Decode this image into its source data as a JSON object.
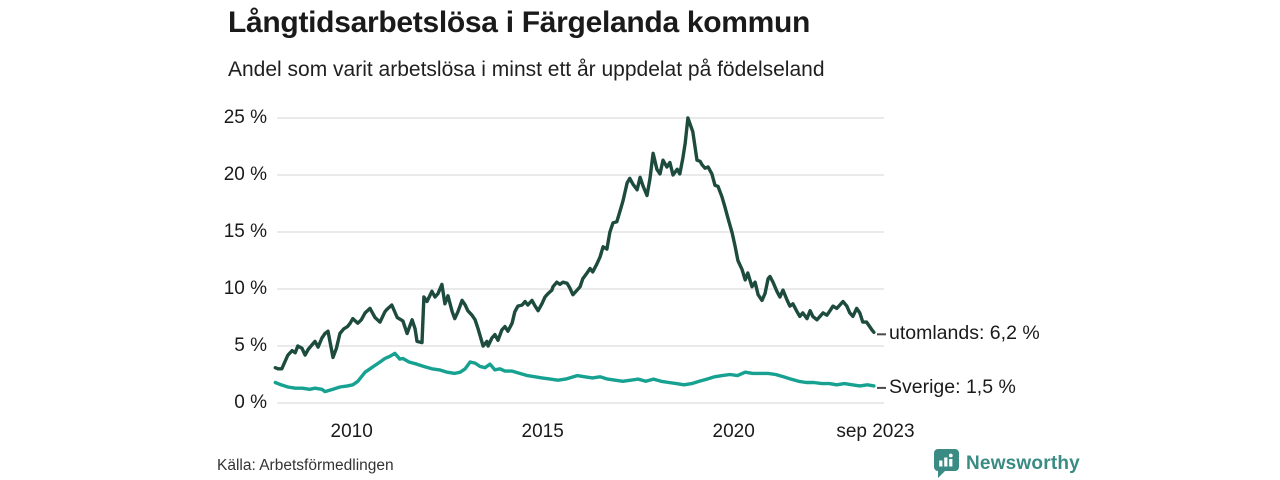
{
  "header": {
    "title": "Långtidsarbetslösa i Färgelanda kommun",
    "subtitle": "Andel som varit arbetslösa i minst ett år uppdelat på födelseland"
  },
  "footer": {
    "source": "Källa: Arbetsförmedlingen",
    "brand": "Newsworthy"
  },
  "colors": {
    "series_utomlands": "#1d4b3e",
    "series_sverige": "#16a191",
    "grid": "#dedede",
    "text": "#1a1a1a",
    "dash": "#4a4a4a",
    "brand": "#3a8b83"
  },
  "chart_data": {
    "type": "line",
    "title": "Långtidsarbetslösa i Färgelanda kommun",
    "subtitle": "Andel som varit arbetslösa i minst ett år uppdelat på födelseland",
    "grid": true,
    "legend_position": "end-of-line-labels",
    "x_range": [
      2008.0,
      2023.67
    ],
    "y_axis": {
      "range": [
        0,
        25
      ],
      "ticks": [
        {
          "value": 0,
          "label": "0 %"
        },
        {
          "value": 5,
          "label": "5 %"
        },
        {
          "value": 10,
          "label": "10 %"
        },
        {
          "value": 15,
          "label": "15 %"
        },
        {
          "value": 20,
          "label": "20 %"
        },
        {
          "value": 25,
          "label": "25 %"
        }
      ]
    },
    "x_axis": {
      "ticks": [
        {
          "value": 2010,
          "label": "2010"
        },
        {
          "value": 2015,
          "label": "2015"
        },
        {
          "value": 2020,
          "label": "2020"
        },
        {
          "value": 2023.71,
          "label": "sep 2023"
        }
      ]
    },
    "series": [
      {
        "name": "utomlands",
        "legend_label": "utomlands: 6,2 %",
        "end_value": 6.2,
        "color": "#1d4b3e",
        "points": [
          [
            2008.0,
            3.1
          ],
          [
            2008.07,
            3.0
          ],
          [
            2008.17,
            3.0
          ],
          [
            2008.25,
            3.6
          ],
          [
            2008.33,
            4.2
          ],
          [
            2008.44,
            4.6
          ],
          [
            2008.52,
            4.4
          ],
          [
            2008.59,
            5.0
          ],
          [
            2008.7,
            4.8
          ],
          [
            2008.78,
            4.2
          ],
          [
            2008.86,
            4.7
          ],
          [
            2008.96,
            5.1
          ],
          [
            2009.04,
            5.4
          ],
          [
            2009.12,
            4.9
          ],
          [
            2009.22,
            5.7
          ],
          [
            2009.3,
            6.1
          ],
          [
            2009.38,
            6.3
          ],
          [
            2009.51,
            4.0
          ],
          [
            2009.6,
            4.8
          ],
          [
            2009.69,
            6.1
          ],
          [
            2009.79,
            6.5
          ],
          [
            2009.89,
            6.7
          ],
          [
            2009.96,
            7.0
          ],
          [
            2010.03,
            7.4
          ],
          [
            2010.16,
            7.0
          ],
          [
            2010.25,
            7.3
          ],
          [
            2010.35,
            7.9
          ],
          [
            2010.48,
            8.3
          ],
          [
            2010.61,
            7.5
          ],
          [
            2010.74,
            7.1
          ],
          [
            2010.87,
            8.0
          ],
          [
            2010.92,
            8.2
          ],
          [
            2011.05,
            8.6
          ],
          [
            2011.19,
            7.5
          ],
          [
            2011.34,
            7.2
          ],
          [
            2011.45,
            6.1
          ],
          [
            2011.58,
            7.3
          ],
          [
            2011.66,
            6.5
          ],
          [
            2011.71,
            5.4
          ],
          [
            2011.84,
            5.3
          ],
          [
            2011.89,
            9.3
          ],
          [
            2011.97,
            8.9
          ],
          [
            2012.1,
            9.8
          ],
          [
            2012.18,
            9.3
          ],
          [
            2012.26,
            9.6
          ],
          [
            2012.36,
            10.4
          ],
          [
            2012.44,
            8.7
          ],
          [
            2012.52,
            9.4
          ],
          [
            2012.63,
            8.0
          ],
          [
            2012.7,
            7.4
          ],
          [
            2012.78,
            8.0
          ],
          [
            2012.89,
            9.0
          ],
          [
            2012.97,
            8.6
          ],
          [
            2013.04,
            8.1
          ],
          [
            2013.15,
            7.7
          ],
          [
            2013.23,
            7.3
          ],
          [
            2013.31,
            6.5
          ],
          [
            2013.44,
            5.0
          ],
          [
            2013.54,
            5.4
          ],
          [
            2013.57,
            5.0
          ],
          [
            2013.67,
            5.7
          ],
          [
            2013.75,
            6.0
          ],
          [
            2013.83,
            5.5
          ],
          [
            2013.93,
            6.4
          ],
          [
            2014.01,
            6.7
          ],
          [
            2014.09,
            6.3
          ],
          [
            2014.2,
            7.0
          ],
          [
            2014.27,
            8.0
          ],
          [
            2014.35,
            8.5
          ],
          [
            2014.46,
            8.6
          ],
          [
            2014.54,
            8.9
          ],
          [
            2014.61,
            8.6
          ],
          [
            2014.72,
            9.0
          ],
          [
            2014.8,
            8.5
          ],
          [
            2014.88,
            8.1
          ],
          [
            2014.98,
            8.7
          ],
          [
            2015.06,
            9.3
          ],
          [
            2015.14,
            9.6
          ],
          [
            2015.24,
            9.9
          ],
          [
            2015.27,
            10.2
          ],
          [
            2015.37,
            10.6
          ],
          [
            2015.45,
            10.4
          ],
          [
            2015.53,
            10.6
          ],
          [
            2015.64,
            10.5
          ],
          [
            2015.71,
            10.1
          ],
          [
            2015.79,
            9.5
          ],
          [
            2015.9,
            9.9
          ],
          [
            2015.98,
            10.2
          ],
          [
            2016.05,
            10.9
          ],
          [
            2016.16,
            11.4
          ],
          [
            2016.24,
            11.8
          ],
          [
            2016.31,
            11.5
          ],
          [
            2016.42,
            12.2
          ],
          [
            2016.5,
            12.8
          ],
          [
            2016.58,
            13.7
          ],
          [
            2016.68,
            13.5
          ],
          [
            2016.76,
            15.0
          ],
          [
            2016.84,
            15.8
          ],
          [
            2016.94,
            15.9
          ],
          [
            2017.02,
            16.8
          ],
          [
            2017.1,
            17.7
          ],
          [
            2017.21,
            19.3
          ],
          [
            2017.28,
            19.7
          ],
          [
            2017.36,
            19.2
          ],
          [
            2017.47,
            18.7
          ],
          [
            2017.55,
            19.8
          ],
          [
            2017.63,
            19.0
          ],
          [
            2017.73,
            18.2
          ],
          [
            2017.81,
            19.7
          ],
          [
            2017.89,
            21.9
          ],
          [
            2017.99,
            20.5
          ],
          [
            2018.07,
            20.1
          ],
          [
            2018.15,
            21.3
          ],
          [
            2018.25,
            20.7
          ],
          [
            2018.33,
            21.1
          ],
          [
            2018.41,
            20.0
          ],
          [
            2018.52,
            20.5
          ],
          [
            2018.59,
            20.1
          ],
          [
            2018.67,
            21.5
          ],
          [
            2018.73,
            22.8
          ],
          [
            2018.8,
            25.0
          ],
          [
            2018.93,
            23.8
          ],
          [
            2019.04,
            21.3
          ],
          [
            2019.12,
            21.2
          ],
          [
            2019.17,
            20.9
          ],
          [
            2019.25,
            20.6
          ],
          [
            2019.33,
            20.7
          ],
          [
            2019.43,
            20.1
          ],
          [
            2019.51,
            19.1
          ],
          [
            2019.59,
            19.0
          ],
          [
            2019.69,
            18.1
          ],
          [
            2019.77,
            17.2
          ],
          [
            2019.85,
            16.2
          ],
          [
            2019.96,
            14.9
          ],
          [
            2020.04,
            13.7
          ],
          [
            2020.11,
            12.5
          ],
          [
            2020.22,
            11.7
          ],
          [
            2020.3,
            10.8
          ],
          [
            2020.37,
            11.4
          ],
          [
            2020.48,
            10.2
          ],
          [
            2020.56,
            10.6
          ],
          [
            2020.64,
            9.5
          ],
          [
            2020.74,
            9.0
          ],
          [
            2020.82,
            9.6
          ],
          [
            2020.9,
            10.9
          ],
          [
            2020.95,
            11.1
          ],
          [
            2021.03,
            10.6
          ],
          [
            2021.13,
            9.8
          ],
          [
            2021.21,
            9.3
          ],
          [
            2021.29,
            9.9
          ],
          [
            2021.4,
            9.0
          ],
          [
            2021.47,
            8.5
          ],
          [
            2021.55,
            8.7
          ],
          [
            2021.66,
            8.0
          ],
          [
            2021.73,
            7.6
          ],
          [
            2021.81,
            7.9
          ],
          [
            2021.92,
            7.4
          ],
          [
            2022.0,
            8.1
          ],
          [
            2022.07,
            7.6
          ],
          [
            2022.18,
            7.3
          ],
          [
            2022.26,
            7.6
          ],
          [
            2022.34,
            7.9
          ],
          [
            2022.44,
            7.7
          ],
          [
            2022.52,
            8.1
          ],
          [
            2022.6,
            8.5
          ],
          [
            2022.7,
            8.3
          ],
          [
            2022.78,
            8.6
          ],
          [
            2022.86,
            8.9
          ],
          [
            2022.96,
            8.5
          ],
          [
            2023.04,
            7.9
          ],
          [
            2023.12,
            7.6
          ],
          [
            2023.22,
            8.3
          ],
          [
            2023.3,
            7.9
          ],
          [
            2023.38,
            7.1
          ],
          [
            2023.48,
            7.1
          ],
          [
            2023.56,
            6.7
          ],
          [
            2023.62,
            6.4
          ],
          [
            2023.67,
            6.2
          ]
        ]
      },
      {
        "name": "Sverige",
        "legend_label": "Sverige: 1,5 %",
        "end_value": 1.5,
        "color": "#16a191",
        "points": [
          [
            2008.0,
            1.8
          ],
          [
            2008.15,
            1.6
          ],
          [
            2008.33,
            1.4
          ],
          [
            2008.52,
            1.3
          ],
          [
            2008.7,
            1.3
          ],
          [
            2008.9,
            1.2
          ],
          [
            2009.04,
            1.3
          ],
          [
            2009.22,
            1.2
          ],
          [
            2009.3,
            1.0
          ],
          [
            2009.51,
            1.2
          ],
          [
            2009.69,
            1.4
          ],
          [
            2009.89,
            1.5
          ],
          [
            2010.03,
            1.6
          ],
          [
            2010.16,
            1.9
          ],
          [
            2010.35,
            2.7
          ],
          [
            2010.48,
            3.0
          ],
          [
            2010.61,
            3.3
          ],
          [
            2010.74,
            3.6
          ],
          [
            2010.87,
            3.9
          ],
          [
            2011.0,
            4.1
          ],
          [
            2011.13,
            4.35
          ],
          [
            2011.26,
            3.85
          ],
          [
            2011.34,
            3.9
          ],
          [
            2011.5,
            3.6
          ],
          [
            2011.71,
            3.4
          ],
          [
            2011.89,
            3.2
          ],
          [
            2012.1,
            3.0
          ],
          [
            2012.3,
            2.9
          ],
          [
            2012.5,
            2.7
          ],
          [
            2012.7,
            2.6
          ],
          [
            2012.84,
            2.7
          ],
          [
            2012.97,
            3.0
          ],
          [
            2013.1,
            3.6
          ],
          [
            2013.23,
            3.5
          ],
          [
            2013.36,
            3.2
          ],
          [
            2013.49,
            3.1
          ],
          [
            2013.62,
            3.4
          ],
          [
            2013.75,
            2.9
          ],
          [
            2013.88,
            3.0
          ],
          [
            2014.01,
            2.8
          ],
          [
            2014.2,
            2.8
          ],
          [
            2014.4,
            2.6
          ],
          [
            2014.6,
            2.4
          ],
          [
            2014.8,
            2.3
          ],
          [
            2014.98,
            2.2
          ],
          [
            2015.2,
            2.1
          ],
          [
            2015.4,
            2.0
          ],
          [
            2015.6,
            2.1
          ],
          [
            2015.71,
            2.2
          ],
          [
            2015.9,
            2.4
          ],
          [
            2016.1,
            2.3
          ],
          [
            2016.3,
            2.2
          ],
          [
            2016.5,
            2.3
          ],
          [
            2016.7,
            2.1
          ],
          [
            2016.9,
            2.0
          ],
          [
            2017.1,
            1.9
          ],
          [
            2017.3,
            2.0
          ],
          [
            2017.5,
            2.1
          ],
          [
            2017.7,
            1.9
          ],
          [
            2017.9,
            2.1
          ],
          [
            2018.1,
            1.9
          ],
          [
            2018.3,
            1.8
          ],
          [
            2018.5,
            1.7
          ],
          [
            2018.7,
            1.6
          ],
          [
            2018.9,
            1.7
          ],
          [
            2019.1,
            1.9
          ],
          [
            2019.3,
            2.1
          ],
          [
            2019.5,
            2.3
          ],
          [
            2019.7,
            2.4
          ],
          [
            2019.9,
            2.5
          ],
          [
            2020.1,
            2.4
          ],
          [
            2020.3,
            2.7
          ],
          [
            2020.5,
            2.6
          ],
          [
            2020.7,
            2.6
          ],
          [
            2020.9,
            2.6
          ],
          [
            2021.1,
            2.5
          ],
          [
            2021.3,
            2.3
          ],
          [
            2021.5,
            2.1
          ],
          [
            2021.7,
            1.9
          ],
          [
            2021.9,
            1.8
          ],
          [
            2022.1,
            1.8
          ],
          [
            2022.3,
            1.7
          ],
          [
            2022.5,
            1.7
          ],
          [
            2022.7,
            1.6
          ],
          [
            2022.9,
            1.7
          ],
          [
            2023.1,
            1.6
          ],
          [
            2023.3,
            1.5
          ],
          [
            2023.5,
            1.6
          ],
          [
            2023.67,
            1.5
          ]
        ]
      }
    ]
  }
}
